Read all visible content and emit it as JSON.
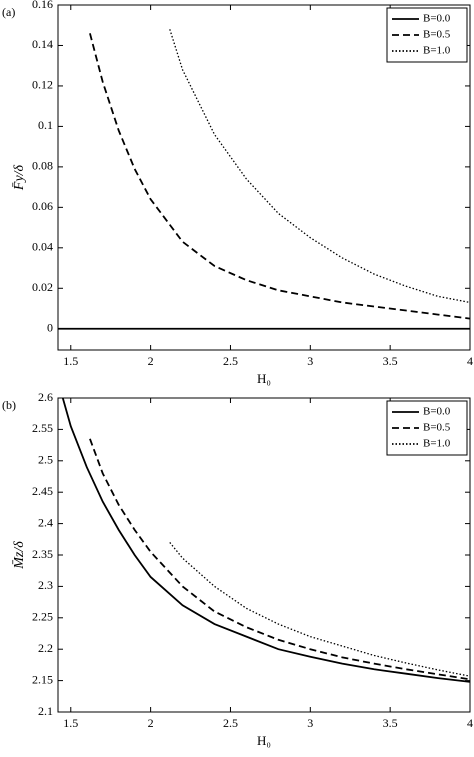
{
  "chart_data": [
    {
      "type": "line",
      "panel_label": "(a)",
      "xlabel": "H₀",
      "ylabel": "F̄y/δ",
      "xlim": [
        1.42,
        4
      ],
      "xticks": [
        1.5,
        2,
        2.5,
        3,
        3.5,
        4
      ],
      "ylim": [
        -0.0105,
        0.16
      ],
      "yticks": [
        0,
        0.02,
        0.04,
        0.06,
        0.08,
        0.1,
        0.12,
        0.14,
        0.16
      ],
      "legend": "upper right",
      "series": [
        {
          "name": "B=0.0",
          "color": "#000000",
          "dash": "solid",
          "x": [
            1.42,
            4
          ],
          "values": [
            0,
            0
          ]
        },
        {
          "name": "B=0.5",
          "color": "#000000",
          "dash": "dashed",
          "x": [
            1.62,
            1.7,
            1.8,
            1.9,
            2.0,
            2.2,
            2.4,
            2.6,
            2.8,
            3.0,
            3.2,
            3.4,
            3.6,
            3.8,
            4.0
          ],
          "values": [
            0.146,
            0.122,
            0.098,
            0.079,
            0.064,
            0.043,
            0.031,
            0.024,
            0.019,
            0.016,
            0.013,
            0.011,
            0.009,
            0.007,
            0.005
          ]
        },
        {
          "name": "B=1.0",
          "color": "#000000",
          "dash": "dotted",
          "x": [
            2.12,
            2.2,
            2.4,
            2.6,
            2.8,
            3.0,
            3.2,
            3.4,
            3.6,
            3.8,
            4.0
          ],
          "values": [
            0.148,
            0.128,
            0.096,
            0.074,
            0.057,
            0.045,
            0.035,
            0.027,
            0.021,
            0.016,
            0.013
          ]
        }
      ]
    },
    {
      "type": "line",
      "panel_label": "(b)",
      "xlabel": "H₀",
      "ylabel": "M̄z/δ",
      "xlim": [
        1.42,
        4
      ],
      "xticks": [
        1.5,
        2,
        2.5,
        3,
        3.5,
        4
      ],
      "ylim": [
        2.1,
        2.6
      ],
      "yticks": [
        2.1,
        2.15,
        2.2,
        2.25,
        2.3,
        2.35,
        2.4,
        2.45,
        2.5,
        2.55,
        2.6
      ],
      "legend": "upper right",
      "series": [
        {
          "name": "B=0.0",
          "color": "#000000",
          "dash": "solid",
          "x": [
            1.45,
            1.5,
            1.6,
            1.7,
            1.8,
            1.9,
            2.0,
            2.2,
            2.4,
            2.6,
            2.8,
            3.0,
            3.2,
            3.4,
            3.6,
            3.8,
            4.0
          ],
          "values": [
            2.6,
            2.555,
            2.49,
            2.435,
            2.39,
            2.35,
            2.315,
            2.27,
            2.24,
            2.22,
            2.2,
            2.188,
            2.177,
            2.168,
            2.161,
            2.154,
            2.148
          ]
        },
        {
          "name": "B=0.5",
          "color": "#000000",
          "dash": "dashed",
          "x": [
            1.62,
            1.7,
            1.8,
            1.9,
            2.0,
            2.2,
            2.4,
            2.6,
            2.8,
            3.0,
            3.2,
            3.4,
            3.6,
            3.8,
            4.0
          ],
          "values": [
            2.535,
            2.48,
            2.43,
            2.39,
            2.355,
            2.3,
            2.26,
            2.235,
            2.215,
            2.2,
            2.187,
            2.177,
            2.168,
            2.16,
            2.152
          ]
        },
        {
          "name": "B=1.0",
          "color": "#000000",
          "dash": "dotted",
          "x": [
            2.12,
            2.2,
            2.4,
            2.6,
            2.8,
            3.0,
            3.2,
            3.4,
            3.6,
            3.8,
            4.0
          ],
          "values": [
            2.37,
            2.345,
            2.3,
            2.265,
            2.24,
            2.22,
            2.205,
            2.19,
            2.178,
            2.167,
            2.157
          ]
        }
      ]
    }
  ]
}
